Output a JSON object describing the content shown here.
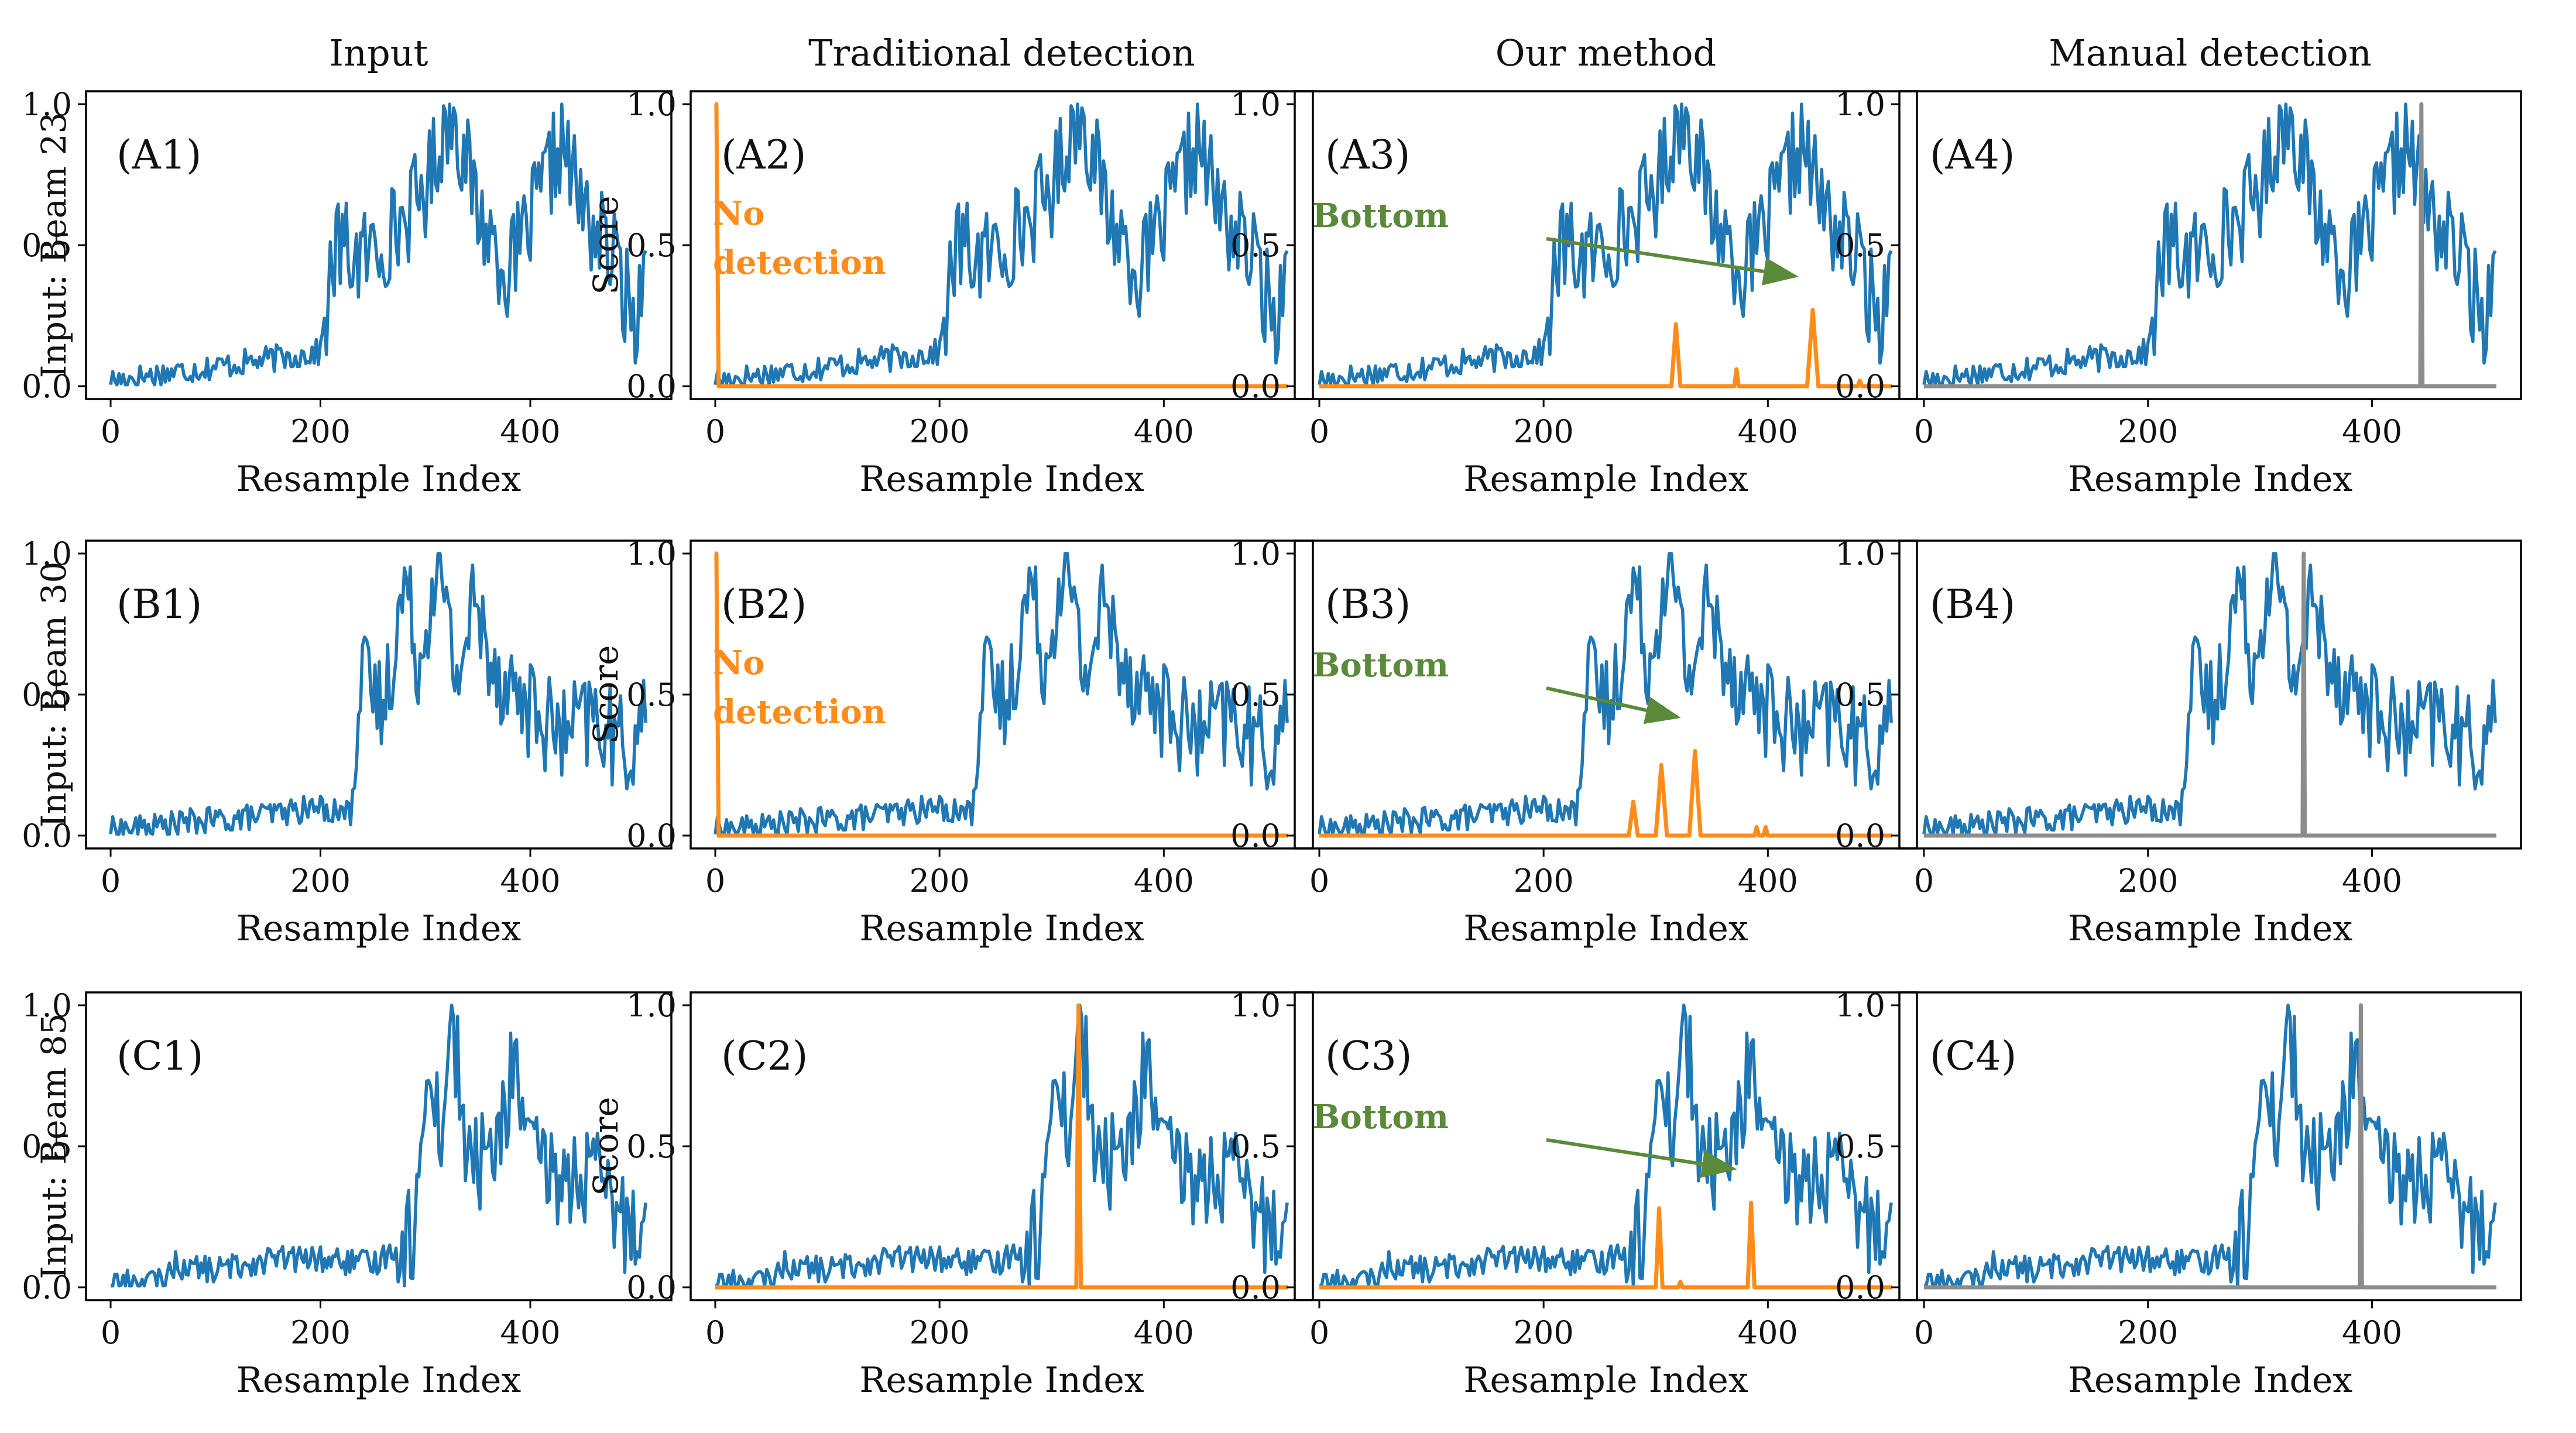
{
  "column_titles": [
    "Input",
    "Traditional detection",
    "Our method",
    "Manual detection"
  ],
  "row_labels": [
    "Input: Beam 23",
    "Input: Beam 30",
    "Input: Beam 85"
  ],
  "score_label": "Score",
  "colors": {
    "signal": "#1f77b4",
    "detection": "#ff8c1a",
    "manual": "#8c8c8c",
    "annotation": "#5a8a3a"
  },
  "chart_data": [
    {
      "type": "line",
      "row": 0,
      "col": 0,
      "panel_label": "(A1)",
      "xlabel": "Resample Index",
      "ylabel": "",
      "xlim": [
        0,
        511
      ],
      "ylim": [
        0,
        1
      ],
      "xticks": [
        "0",
        "200",
        "400"
      ],
      "yticks": [
        "0.0",
        "0.5",
        "1.0"
      ],
      "series": [
        {
          "role": "signal",
          "x": [
            0,
            40,
            80,
            120,
            160,
            200,
            215,
            240,
            270,
            300,
            325,
            350,
            380,
            400,
            430,
            450,
            480,
            500,
            510
          ],
          "y": [
            0.02,
            0.04,
            0.06,
            0.08,
            0.1,
            0.12,
            0.5,
            0.45,
            0.55,
            0.7,
            1.0,
            0.62,
            0.4,
            0.58,
            0.87,
            0.62,
            0.45,
            0.22,
            0.48
          ]
        }
      ]
    },
    {
      "type": "line",
      "row": 0,
      "col": 1,
      "panel_label": "(A2)",
      "xlabel": "Resample Index",
      "ylabel": "Score",
      "xlim": [
        0,
        511
      ],
      "ylim": [
        0,
        1
      ],
      "xticks": [
        "0",
        "200",
        "400"
      ],
      "yticks": [
        "0.0",
        "0.5",
        "1.0"
      ],
      "annotation": [
        "No",
        "detection"
      ],
      "series": [
        {
          "role": "signal",
          "x": [
            0,
            40,
            80,
            120,
            160,
            200,
            215,
            240,
            270,
            300,
            325,
            350,
            380,
            400,
            430,
            450,
            480,
            500,
            510
          ],
          "y": [
            0.02,
            0.04,
            0.06,
            0.08,
            0.1,
            0.12,
            0.5,
            0.45,
            0.55,
            0.7,
            1.0,
            0.62,
            0.4,
            0.58,
            0.87,
            0.62,
            0.45,
            0.22,
            0.48
          ]
        },
        {
          "role": "detection",
          "x": [
            0,
            1,
            3,
            511
          ],
          "y": [
            1.0,
            1.0,
            0.0,
            0.0
          ]
        }
      ]
    },
    {
      "type": "line",
      "row": 0,
      "col": 2,
      "panel_label": "(A3)",
      "xlabel": "Resample Index",
      "ylabel": "",
      "xlim": [
        0,
        511
      ],
      "ylim": [
        0,
        1
      ],
      "xticks": [
        "0",
        "200",
        "400"
      ],
      "yticks": [
        "0.0",
        "0.5",
        "1.0"
      ],
      "annotation": [
        "Bottom"
      ],
      "series": [
        {
          "role": "signal",
          "x": [
            0,
            40,
            80,
            120,
            160,
            200,
            215,
            240,
            270,
            300,
            325,
            350,
            380,
            400,
            430,
            450,
            480,
            500,
            510
          ],
          "y": [
            0.02,
            0.04,
            0.06,
            0.08,
            0.1,
            0.12,
            0.5,
            0.45,
            0.55,
            0.7,
            1.0,
            0.62,
            0.4,
            0.58,
            0.87,
            0.62,
            0.45,
            0.22,
            0.48
          ]
        },
        {
          "role": "detection",
          "x": [
            0,
            314,
            318,
            322,
            326,
            370,
            372,
            374,
            435,
            440,
            445,
            480,
            482,
            484,
            511
          ],
          "y": [
            0.0,
            0.0,
            0.22,
            0.0,
            0.0,
            0.0,
            0.06,
            0.0,
            0.0,
            0.27,
            0.0,
            0.0,
            0.02,
            0.0,
            0.0
          ]
        }
      ]
    },
    {
      "type": "line",
      "row": 0,
      "col": 3,
      "panel_label": "(A4)",
      "xlabel": "Resample Index",
      "ylabel": "",
      "xlim": [
        0,
        511
      ],
      "ylim": [
        0,
        1
      ],
      "xticks": [
        "0",
        "200",
        "400"
      ],
      "yticks": [
        "0.0",
        "0.5",
        "1.0"
      ],
      "series": [
        {
          "role": "signal",
          "x": [
            0,
            40,
            80,
            120,
            160,
            200,
            215,
            240,
            270,
            300,
            325,
            350,
            380,
            400,
            430,
            450,
            480,
            500,
            510
          ],
          "y": [
            0.02,
            0.04,
            0.06,
            0.08,
            0.1,
            0.12,
            0.5,
            0.45,
            0.55,
            0.7,
            1.0,
            0.62,
            0.4,
            0.58,
            0.87,
            0.62,
            0.45,
            0.22,
            0.48
          ]
        },
        {
          "role": "manual",
          "x": [
            0,
            443,
            444,
            445,
            511
          ],
          "y": [
            0.0,
            0.0,
            1.0,
            0.0,
            0.0
          ]
        }
      ]
    },
    {
      "type": "line",
      "row": 1,
      "col": 0,
      "panel_label": "(B1)",
      "xlabel": "Resample Index",
      "ylabel": "",
      "xlim": [
        0,
        511
      ],
      "ylim": [
        0,
        1
      ],
      "xticks": [
        "0",
        "200",
        "400"
      ],
      "yticks": [
        "0.0",
        "0.5",
        "1.0"
      ],
      "series": [
        {
          "role": "signal",
          "x": [
            0,
            40,
            80,
            120,
            160,
            200,
            225,
            240,
            260,
            280,
            295,
            310,
            330,
            345,
            370,
            400,
            430,
            460,
            490,
            510
          ],
          "y": [
            0.02,
            0.03,
            0.05,
            0.06,
            0.08,
            0.1,
            0.08,
            0.55,
            0.45,
            0.9,
            0.6,
            1.0,
            0.55,
            0.82,
            0.58,
            0.45,
            0.35,
            0.42,
            0.3,
            0.4
          ]
        }
      ]
    },
    {
      "type": "line",
      "row": 1,
      "col": 1,
      "panel_label": "(B2)",
      "xlabel": "Resample Index",
      "ylabel": "Score",
      "xlim": [
        0,
        511
      ],
      "ylim": [
        0,
        1
      ],
      "xticks": [
        "0",
        "200",
        "400"
      ],
      "yticks": [
        "0.0",
        "0.5",
        "1.0"
      ],
      "annotation": [
        "No",
        "detection"
      ],
      "series": [
        {
          "role": "signal",
          "x": [
            0,
            40,
            80,
            120,
            160,
            200,
            225,
            240,
            260,
            280,
            295,
            310,
            330,
            345,
            370,
            400,
            430,
            460,
            490,
            510
          ],
          "y": [
            0.02,
            0.03,
            0.05,
            0.06,
            0.08,
            0.1,
            0.08,
            0.55,
            0.45,
            0.9,
            0.6,
            1.0,
            0.55,
            0.82,
            0.58,
            0.45,
            0.35,
            0.42,
            0.3,
            0.4
          ]
        },
        {
          "role": "detection",
          "x": [
            0,
            1,
            3,
            511
          ],
          "y": [
            1.0,
            1.0,
            0.0,
            0.0
          ]
        }
      ]
    },
    {
      "type": "line",
      "row": 1,
      "col": 2,
      "panel_label": "(B3)",
      "xlabel": "Resample Index",
      "ylabel": "",
      "xlim": [
        0,
        511
      ],
      "ylim": [
        0,
        1
      ],
      "xticks": [
        "0",
        "200",
        "400"
      ],
      "yticks": [
        "0.0",
        "0.5",
        "1.0"
      ],
      "annotation": [
        "Bottom"
      ],
      "series": [
        {
          "role": "signal",
          "x": [
            0,
            40,
            80,
            120,
            160,
            200,
            225,
            240,
            260,
            280,
            295,
            310,
            330,
            345,
            370,
            400,
            430,
            460,
            490,
            510
          ],
          "y": [
            0.02,
            0.03,
            0.05,
            0.06,
            0.08,
            0.1,
            0.08,
            0.55,
            0.45,
            0.9,
            0.6,
            1.0,
            0.55,
            0.82,
            0.58,
            0.45,
            0.35,
            0.42,
            0.3,
            0.4
          ]
        },
        {
          "role": "detection",
          "x": [
            0,
            276,
            280,
            284,
            300,
            305,
            310,
            330,
            335,
            340,
            388,
            390,
            392,
            396,
            398,
            400,
            511
          ],
          "y": [
            0.0,
            0.0,
            0.12,
            0.0,
            0.0,
            0.25,
            0.0,
            0.0,
            0.3,
            0.0,
            0.0,
            0.03,
            0.0,
            0.0,
            0.03,
            0.0,
            0.0
          ]
        }
      ]
    },
    {
      "type": "line",
      "row": 1,
      "col": 3,
      "panel_label": "(B4)",
      "xlabel": "Resample Index",
      "ylabel": "",
      "xlim": [
        0,
        511
      ],
      "ylim": [
        0,
        1
      ],
      "xticks": [
        "0",
        "200",
        "400"
      ],
      "yticks": [
        "0.0",
        "0.5",
        "1.0"
      ],
      "series": [
        {
          "role": "signal",
          "x": [
            0,
            40,
            80,
            120,
            160,
            200,
            225,
            240,
            260,
            280,
            295,
            310,
            330,
            345,
            370,
            400,
            430,
            460,
            490,
            510
          ],
          "y": [
            0.02,
            0.03,
            0.05,
            0.06,
            0.08,
            0.1,
            0.08,
            0.55,
            0.45,
            0.9,
            0.6,
            1.0,
            0.55,
            0.82,
            0.58,
            0.45,
            0.35,
            0.42,
            0.3,
            0.4
          ]
        },
        {
          "role": "manual",
          "x": [
            0,
            338,
            339,
            340,
            511
          ],
          "y": [
            0.0,
            0.0,
            1.0,
            0.0,
            0.0
          ]
        }
      ]
    },
    {
      "type": "line",
      "row": 2,
      "col": 0,
      "panel_label": "(C1)",
      "xlabel": "Resample Index",
      "ylabel": "",
      "xlim": [
        0,
        511
      ],
      "ylim": [
        0,
        1
      ],
      "xticks": [
        "0",
        "200",
        "400"
      ],
      "yticks": [
        "0.0",
        "0.5",
        "1.0"
      ],
      "series": [
        {
          "role": "signal",
          "x": [
            0,
            50,
            60,
            100,
            150,
            200,
            250,
            290,
            305,
            315,
            325,
            340,
            370,
            385,
            400,
            430,
            460,
            490,
            510
          ],
          "y": [
            0.02,
            0.02,
            0.08,
            0.06,
            0.1,
            0.1,
            0.08,
            0.2,
            0.85,
            0.5,
            1.0,
            0.42,
            0.5,
            0.82,
            0.45,
            0.38,
            0.4,
            0.22,
            0.3
          ]
        }
      ]
    },
    {
      "type": "line",
      "row": 2,
      "col": 1,
      "panel_label": "(C2)",
      "xlabel": "Resample Index",
      "ylabel": "Score",
      "xlim": [
        0,
        511
      ],
      "ylim": [
        0,
        1
      ],
      "xticks": [
        "0",
        "200",
        "400"
      ],
      "yticks": [
        "0.0",
        "0.5",
        "1.0"
      ],
      "series": [
        {
          "role": "signal",
          "x": [
            0,
            50,
            60,
            100,
            150,
            200,
            250,
            290,
            305,
            315,
            325,
            340,
            370,
            385,
            400,
            430,
            460,
            490,
            510
          ],
          "y": [
            0.02,
            0.02,
            0.08,
            0.06,
            0.1,
            0.1,
            0.08,
            0.2,
            0.85,
            0.5,
            1.0,
            0.42,
            0.5,
            0.82,
            0.45,
            0.38,
            0.4,
            0.22,
            0.3
          ]
        },
        {
          "role": "detection",
          "x": [
            0,
            322,
            324,
            326,
            511
          ],
          "y": [
            0.0,
            0.0,
            1.0,
            0.0,
            0.0
          ]
        }
      ]
    },
    {
      "type": "line",
      "row": 2,
      "col": 2,
      "panel_label": "(C3)",
      "xlabel": "Resample Index",
      "ylabel": "",
      "xlim": [
        0,
        511
      ],
      "ylim": [
        0,
        1
      ],
      "xticks": [
        "0",
        "200",
        "400"
      ],
      "yticks": [
        "0.0",
        "0.5",
        "1.0"
      ],
      "annotation": [
        "Bottom"
      ],
      "series": [
        {
          "role": "signal",
          "x": [
            0,
            50,
            60,
            100,
            150,
            200,
            250,
            290,
            305,
            315,
            325,
            340,
            370,
            385,
            400,
            430,
            460,
            490,
            510
          ],
          "y": [
            0.02,
            0.02,
            0.08,
            0.06,
            0.1,
            0.1,
            0.08,
            0.2,
            0.85,
            0.5,
            1.0,
            0.42,
            0.5,
            0.82,
            0.45,
            0.38,
            0.4,
            0.22,
            0.3
          ]
        },
        {
          "role": "detection",
          "x": [
            0,
            300,
            303,
            306,
            320,
            322,
            324,
            382,
            385,
            388,
            511
          ],
          "y": [
            0.0,
            0.0,
            0.28,
            0.0,
            0.0,
            0.02,
            0.0,
            0.0,
            0.3,
            0.0,
            0.0
          ]
        }
      ]
    },
    {
      "type": "line",
      "row": 2,
      "col": 3,
      "panel_label": "(C4)",
      "xlabel": "Resample Index",
      "ylabel": "",
      "xlim": [
        0,
        511
      ],
      "ylim": [
        0,
        1
      ],
      "xticks": [
        "0",
        "200",
        "400"
      ],
      "yticks": [
        "0.0",
        "0.5",
        "1.0"
      ],
      "series": [
        {
          "role": "signal",
          "x": [
            0,
            50,
            60,
            100,
            150,
            200,
            250,
            290,
            305,
            315,
            325,
            340,
            370,
            385,
            400,
            430,
            460,
            490,
            510
          ],
          "y": [
            0.02,
            0.02,
            0.08,
            0.06,
            0.1,
            0.1,
            0.08,
            0.2,
            0.85,
            0.5,
            1.0,
            0.42,
            0.5,
            0.82,
            0.45,
            0.38,
            0.4,
            0.22,
            0.3
          ]
        },
        {
          "role": "manual",
          "x": [
            0,
            389,
            390,
            391,
            511
          ],
          "y": [
            0.0,
            0.0,
            1.0,
            0.0,
            0.0
          ]
        }
      ]
    }
  ]
}
